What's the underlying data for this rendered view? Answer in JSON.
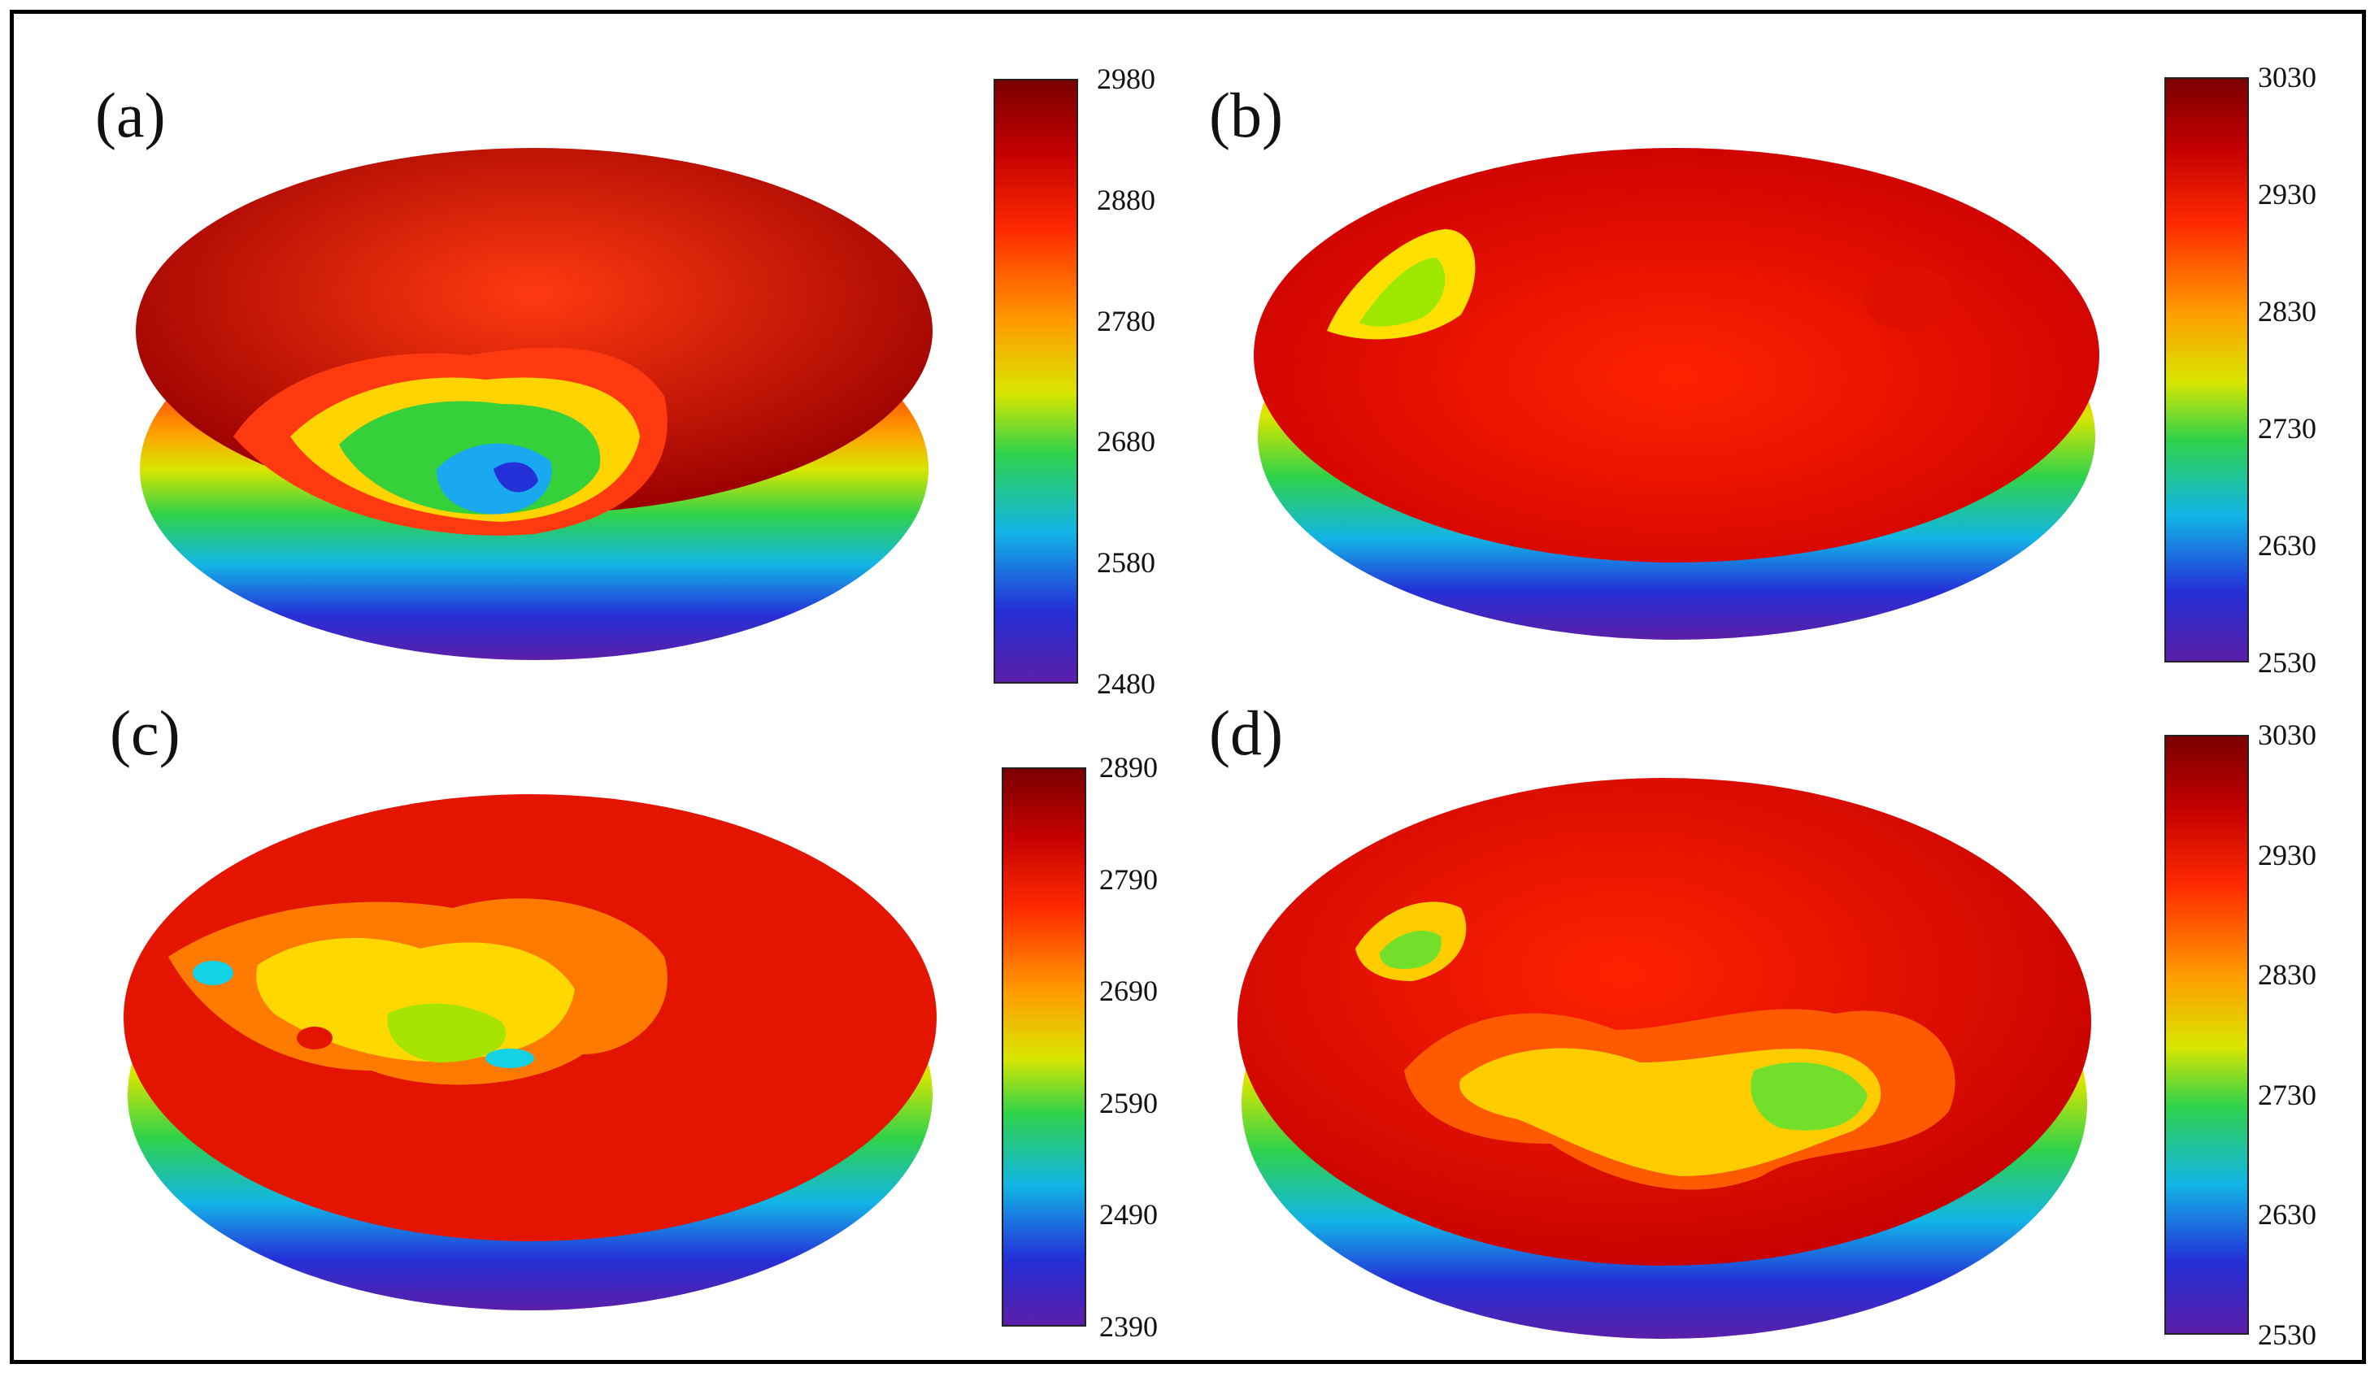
{
  "colormap": [
    "#5b1fa8",
    "#2430d8",
    "#12b5e6",
    "#2fd24a",
    "#d9e600",
    "#ff9b00",
    "#ff2a00",
    "#c40000",
    "#7a0000"
  ],
  "panels": [
    {
      "id": "a",
      "label": "(a)",
      "colorbar_ticks": [
        "2980",
        "2880",
        "2780",
        "2680",
        "2580",
        "2480"
      ],
      "surface_colors": {
        "rim": "#9a0000",
        "mid": "#ff3a10",
        "low1": "#ffd400",
        "low2": "#35d03a",
        "low3": "#1aa8f0"
      }
    },
    {
      "id": "b",
      "label": "(b)",
      "colorbar_ticks": [
        "3030",
        "2930",
        "2830",
        "2730",
        "2630",
        "2530"
      ],
      "surface_colors": {
        "rim": "#cc0000",
        "mid": "#ff2200",
        "low1": "#ffe000",
        "low2": "#9ee800"
      }
    },
    {
      "id": "c",
      "label": "(c)",
      "colorbar_ticks": [
        "2890",
        "2790",
        "2690",
        "2590",
        "2490",
        "2390"
      ],
      "surface_colors": {
        "rim": "#e31500",
        "mid": "#ff7a00",
        "low1": "#ffd800",
        "low2": "#a6e400",
        "low3": "#14d2e6"
      }
    },
    {
      "id": "d",
      "label": "(d)",
      "colorbar_ticks": [
        "3030",
        "2930",
        "2830",
        "2730",
        "2630",
        "2530"
      ],
      "surface_colors": {
        "rim": "#c40000",
        "mid": "#ff5a00",
        "low1": "#ffcc00",
        "low2": "#72e02a"
      }
    }
  ]
}
